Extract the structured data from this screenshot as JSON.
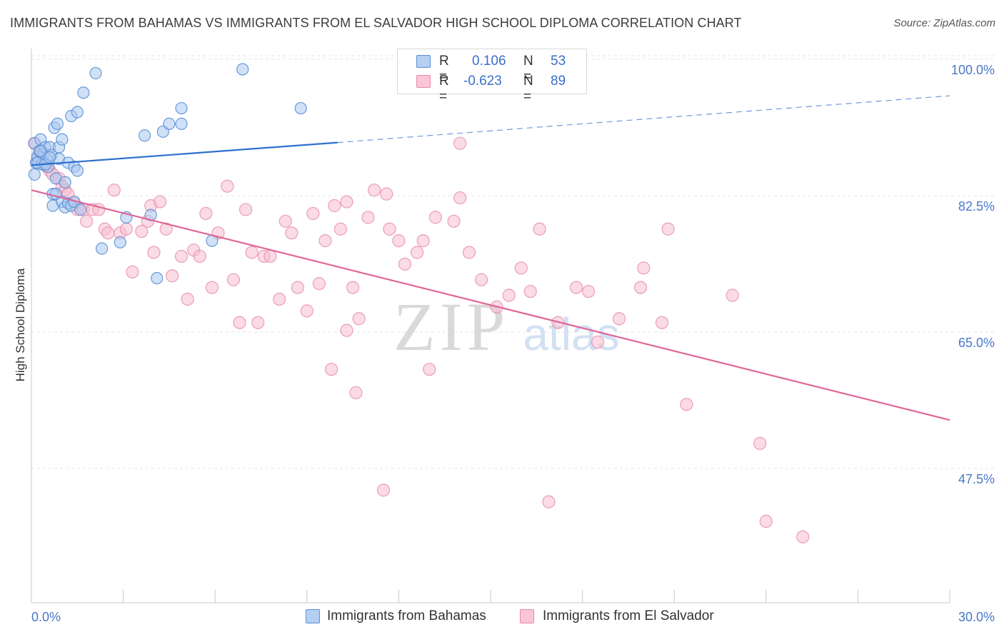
{
  "title": "IMMIGRANTS FROM BAHAMAS VS IMMIGRANTS FROM EL SALVADOR HIGH SCHOOL DIPLOMA CORRELATION CHART",
  "source": "Source: ZipAtlas.com",
  "watermark": {
    "zip": "ZIP",
    "atlas": "atlas"
  },
  "legend": {
    "r_label": "R =",
    "n_label": "N =",
    "rows": [
      {
        "r": "0.106",
        "n": "53",
        "color": "#b5cff3",
        "border": "#5b8fd6"
      },
      {
        "r": "-0.623",
        "n": "89",
        "color": "#f9c6d6",
        "border": "#e68aa8"
      }
    ]
  },
  "bottom_legend": {
    "bahamas": "Immigrants from Bahamas",
    "el_salvador": "Immigrants from El Salvador"
  },
  "colors": {
    "bahamas_fill": "#a9c8f0",
    "bahamas_stroke": "#5b8fd6",
    "bahamas_line": "#2f6fd0",
    "salvador_fill": "#f7bdd0",
    "salvador_stroke": "#e58aa8",
    "salvador_line": "#e0659a",
    "tick_text": "#4a78c8"
  },
  "chart_data": {
    "type": "scatter",
    "title": "IMMIGRANTS FROM BAHAMAS VS IMMIGRANTS FROM EL SALVADOR HIGH SCHOOL DIPLOMA CORRELATION CHART",
    "xlabel": "",
    "ylabel": "High School Diploma",
    "xlim": [
      0,
      30
    ],
    "ylim": [
      30,
      102
    ],
    "x_tick_labels": [
      "0.0%",
      "30.0%"
    ],
    "y_ticks": [
      {
        "value": 100,
        "label": "100.0%"
      },
      {
        "value": 82.5,
        "label": "82.5%"
      },
      {
        "value": 65,
        "label": "65.0%"
      },
      {
        "value": 47.5,
        "label": "47.5%"
      }
    ],
    "grid": true,
    "legend_position": "top-center",
    "series": [
      {
        "name": "Immigrants from Bahamas",
        "r": 0.106,
        "n": 53,
        "trend": {
          "x0": 0,
          "y0": 87.7,
          "x1": 10,
          "y1": 90.6,
          "dash_to_x": 30,
          "dash_to_y": 96.6
        },
        "points": [
          [
            0.1,
            86.5
          ],
          [
            0.1,
            90.5
          ],
          [
            0.15,
            88.0
          ],
          [
            0.2,
            88.8
          ],
          [
            0.25,
            89.5
          ],
          [
            0.3,
            91.0
          ],
          [
            0.35,
            87.8
          ],
          [
            0.4,
            89.2
          ],
          [
            0.45,
            90.0
          ],
          [
            0.5,
            88.5
          ],
          [
            0.55,
            87.5
          ],
          [
            0.6,
            90.0
          ],
          [
            0.65,
            89.0
          ],
          [
            0.7,
            84.0
          ],
          [
            0.7,
            82.5
          ],
          [
            0.75,
            92.5
          ],
          [
            0.8,
            86.0
          ],
          [
            0.8,
            84.0
          ],
          [
            0.85,
            93.0
          ],
          [
            0.9,
            90.0
          ],
          [
            0.9,
            88.5
          ],
          [
            1.0,
            91.0
          ],
          [
            1.0,
            83.0
          ],
          [
            1.1,
            85.5
          ],
          [
            1.1,
            82.3
          ],
          [
            1.2,
            88.0
          ],
          [
            1.2,
            82.8
          ],
          [
            1.3,
            94.0
          ],
          [
            1.3,
            82.5
          ],
          [
            1.4,
            87.5
          ],
          [
            1.4,
            83.0
          ],
          [
            1.5,
            87.0
          ],
          [
            1.5,
            94.5
          ],
          [
            1.6,
            82.0
          ],
          [
            1.7,
            97.0
          ],
          [
            2.1,
            99.5
          ],
          [
            2.3,
            77.0
          ],
          [
            2.9,
            77.8
          ],
          [
            3.1,
            81.0
          ],
          [
            3.7,
            91.5
          ],
          [
            3.9,
            81.3
          ],
          [
            4.1,
            73.2
          ],
          [
            4.3,
            92.0
          ],
          [
            4.5,
            93.0
          ],
          [
            4.9,
            93.0
          ],
          [
            4.9,
            95.0
          ],
          [
            5.9,
            78.0
          ],
          [
            6.9,
            100.0
          ],
          [
            8.8,
            95.0
          ],
          [
            0.2,
            88.0
          ],
          [
            0.45,
            87.8
          ],
          [
            0.6,
            88.7
          ],
          [
            0.3,
            89.5
          ]
        ]
      },
      {
        "name": "Immigrants from El Salvador",
        "r": -0.623,
        "n": 89,
        "trend": {
          "x0": 0,
          "y0": 84.5,
          "x1": 30,
          "y1": 55.0
        },
        "points": [
          [
            0.1,
            90.5
          ],
          [
            0.2,
            88.5
          ],
          [
            0.3,
            89.0
          ],
          [
            0.5,
            87.5
          ],
          [
            0.6,
            87.0
          ],
          [
            0.7,
            86.5
          ],
          [
            0.9,
            86.0
          ],
          [
            1.0,
            85.0
          ],
          [
            1.1,
            84.5
          ],
          [
            1.2,
            84.0
          ],
          [
            1.4,
            82.8
          ],
          [
            1.5,
            82.0
          ],
          [
            1.7,
            82.0
          ],
          [
            1.8,
            80.5
          ],
          [
            2.0,
            82.0
          ],
          [
            2.2,
            82.0
          ],
          [
            2.4,
            79.5
          ],
          [
            2.5,
            79.0
          ],
          [
            2.7,
            84.5
          ],
          [
            2.9,
            79.0
          ],
          [
            3.1,
            79.5
          ],
          [
            3.3,
            74.0
          ],
          [
            3.6,
            79.2
          ],
          [
            3.8,
            80.5
          ],
          [
            3.9,
            82.5
          ],
          [
            4.0,
            76.5
          ],
          [
            4.2,
            83.0
          ],
          [
            4.4,
            79.5
          ],
          [
            4.6,
            73.5
          ],
          [
            4.9,
            76.0
          ],
          [
            5.1,
            70.5
          ],
          [
            5.3,
            76.8
          ],
          [
            5.5,
            76.0
          ],
          [
            5.7,
            81.5
          ],
          [
            5.9,
            72.0
          ],
          [
            6.1,
            79.0
          ],
          [
            6.4,
            85.0
          ],
          [
            6.6,
            73.0
          ],
          [
            6.8,
            67.5
          ],
          [
            7.0,
            82.0
          ],
          [
            7.2,
            76.5
          ],
          [
            7.4,
            67.5
          ],
          [
            7.6,
            76.0
          ],
          [
            7.8,
            76.0
          ],
          [
            8.1,
            70.5
          ],
          [
            8.3,
            80.5
          ],
          [
            8.5,
            79.0
          ],
          [
            8.7,
            72.0
          ],
          [
            9.0,
            69.0
          ],
          [
            9.2,
            81.5
          ],
          [
            9.4,
            72.5
          ],
          [
            9.6,
            78.0
          ],
          [
            9.9,
            82.5
          ],
          [
            10.1,
            79.5
          ],
          [
            10.3,
            83.0
          ],
          [
            10.5,
            72.0
          ],
          [
            10.7,
            68.0
          ],
          [
            11.0,
            81.0
          ],
          [
            11.2,
            84.5
          ],
          [
            11.6,
            84.0
          ],
          [
            11.7,
            79.5
          ],
          [
            12.0,
            78.0
          ],
          [
            12.2,
            75.0
          ],
          [
            12.6,
            76.5
          ],
          [
            12.8,
            78.0
          ],
          [
            13.2,
            81.0
          ],
          [
            13.8,
            80.5
          ],
          [
            14.0,
            83.5
          ],
          [
            14.3,
            76.5
          ],
          [
            14.7,
            73.0
          ],
          [
            15.2,
            69.5
          ],
          [
            15.6,
            71.0
          ],
          [
            16.0,
            74.5
          ],
          [
            16.3,
            71.5
          ],
          [
            16.6,
            79.5
          ],
          [
            17.2,
            67.5
          ],
          [
            17.8,
            72.0
          ],
          [
            18.2,
            71.5
          ],
          [
            18.5,
            65.0
          ],
          [
            19.2,
            68.0
          ],
          [
            19.9,
            72.0
          ],
          [
            20.0,
            74.5
          ],
          [
            20.6,
            67.5
          ],
          [
            20.8,
            79.5
          ],
          [
            21.4,
            57.0
          ],
          [
            22.9,
            71.0
          ],
          [
            23.8,
            52.0
          ],
          [
            11.5,
            46.0
          ],
          [
            14.0,
            90.5
          ]
        ],
        "extra_points": [
          [
            16.9,
            44.5
          ],
          [
            24.0,
            42.0
          ],
          [
            25.2,
            40.0
          ],
          [
            10.3,
            66.5
          ],
          [
            13.0,
            61.5
          ],
          [
            9.8,
            61.5
          ],
          [
            10.6,
            58.5
          ]
        ]
      }
    ]
  }
}
